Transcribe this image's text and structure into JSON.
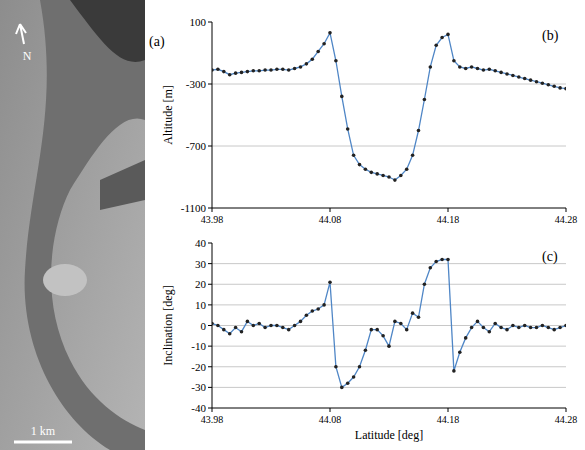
{
  "image": {
    "label": "(a)",
    "north": "N",
    "scale_bar": "1 km"
  },
  "chart_data": [
    {
      "type": "line",
      "title": "(b)",
      "y_label": "Altitude [m]",
      "x": [
        43.98,
        43.985,
        43.99,
        43.995,
        44.0,
        44.005,
        44.01,
        44.015,
        44.02,
        44.025,
        44.03,
        44.035,
        44.04,
        44.045,
        44.05,
        44.055,
        44.06,
        44.065,
        44.07,
        44.075,
        44.08,
        44.085,
        44.09,
        44.095,
        44.1,
        44.105,
        44.11,
        44.115,
        44.12,
        44.125,
        44.13,
        44.135,
        44.14,
        44.145,
        44.15,
        44.155,
        44.16,
        44.165,
        44.17,
        44.175,
        44.18,
        44.185,
        44.19,
        44.195,
        44.2,
        44.205,
        44.21,
        44.215,
        44.22,
        44.225,
        44.23,
        44.235,
        44.24,
        44.245,
        44.25,
        44.255,
        44.26,
        44.265,
        44.27,
        44.275,
        44.28
      ],
      "values": [
        -210,
        -205,
        -220,
        -240,
        -230,
        -225,
        -220,
        -215,
        -215,
        -210,
        -210,
        -205,
        -205,
        -210,
        -200,
        -190,
        -170,
        -140,
        -90,
        -40,
        30,
        -150,
        -380,
        -590,
        -760,
        -820,
        -850,
        -870,
        -880,
        -890,
        -900,
        -920,
        -890,
        -850,
        -760,
        -600,
        -400,
        -190,
        -50,
        0,
        20,
        -150,
        -190,
        -200,
        -190,
        -200,
        -210,
        -205,
        -215,
        -225,
        -235,
        -245,
        -255,
        -265,
        -275,
        -285,
        -295,
        -305,
        -315,
        -325,
        -330
      ],
      "color": "#4f86c6",
      "marker": "circle",
      "xlim": [
        43.98,
        44.28
      ],
      "xticks": [
        43.98,
        44.08,
        44.18,
        44.28
      ],
      "ylim": [
        -1100,
        100
      ],
      "yticks": [
        100,
        -300,
        -700,
        -1100
      ],
      "grid": true
    },
    {
      "type": "line",
      "title": "(c)",
      "x_label": "Latitude [deg]",
      "y_label": "Inclination [deg]",
      "x": [
        43.98,
        43.985,
        43.99,
        43.995,
        44.0,
        44.005,
        44.01,
        44.015,
        44.02,
        44.025,
        44.03,
        44.035,
        44.04,
        44.045,
        44.05,
        44.055,
        44.06,
        44.065,
        44.07,
        44.075,
        44.08,
        44.085,
        44.09,
        44.095,
        44.1,
        44.105,
        44.11,
        44.115,
        44.12,
        44.125,
        44.13,
        44.135,
        44.14,
        44.145,
        44.15,
        44.155,
        44.16,
        44.165,
        44.17,
        44.175,
        44.18,
        44.185,
        44.19,
        44.195,
        44.2,
        44.205,
        44.21,
        44.215,
        44.22,
        44.225,
        44.23,
        44.235,
        44.24,
        44.245,
        44.25,
        44.255,
        44.26,
        44.265,
        44.27,
        44.275,
        44.28
      ],
      "values": [
        1,
        0,
        -2,
        -4,
        -1,
        -3,
        2,
        0,
        1,
        -1,
        0,
        0,
        -1,
        -2,
        0,
        2,
        5,
        7,
        8,
        10,
        21,
        -20,
        -30,
        -28,
        -25,
        -20,
        -12,
        -2,
        -2,
        -5,
        -10,
        2,
        1,
        -2,
        6,
        4,
        20,
        28,
        31,
        32,
        32,
        -22,
        -13,
        -6,
        -1,
        2,
        -1,
        -3,
        1,
        -1,
        -2,
        0,
        -1,
        0,
        -1,
        -1,
        0,
        -1,
        -2,
        -1,
        0
      ],
      "color": "#4f86c6",
      "marker": "circle",
      "xlim": [
        43.98,
        44.28
      ],
      "xticks": [
        43.98,
        44.08,
        44.18,
        44.28
      ],
      "ylim": [
        -40,
        40
      ],
      "yticks": [
        40,
        30,
        20,
        10,
        0,
        -10,
        -20,
        -30,
        -40
      ],
      "grid": true
    }
  ]
}
